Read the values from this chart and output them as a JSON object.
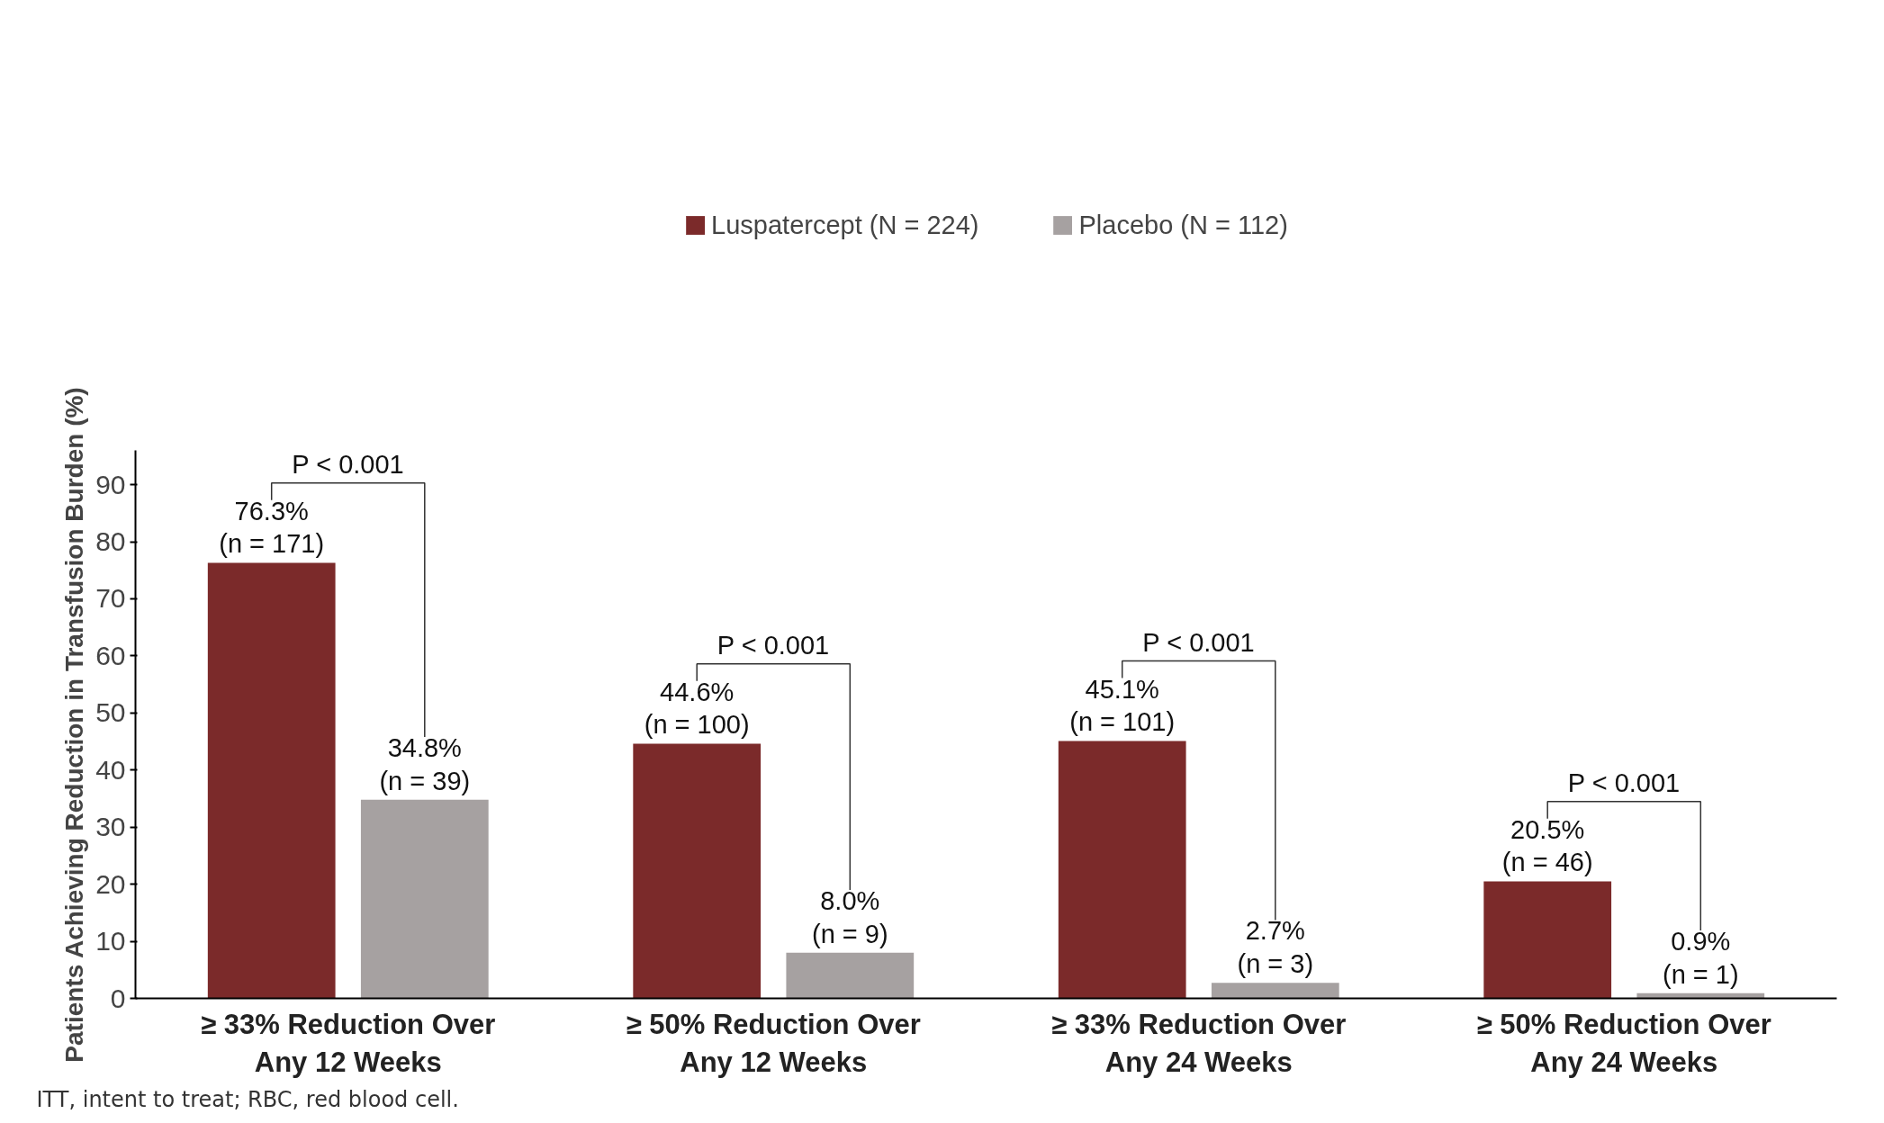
{
  "chart_data": {
    "type": "bar",
    "ylabel": "Patients Achieving Reduction in Transfusion Burden (%)",
    "categories": [
      "≥ 33% Reduction Over\nAny 12 Weeks",
      "≥ 50% Reduction Over\nAny 12 Weeks",
      "≥ 33% Reduction Over\nAny 24 Weeks",
      "≥ 50% Reduction Over\nAny 24 Weeks"
    ],
    "series": [
      {
        "name": "Luspatercept (N = 224)",
        "color": "#7b2a2a",
        "values": [
          76.3,
          44.6,
          45.1,
          20.5
        ],
        "value_labels": [
          "76.3%\n(n = 171)",
          "44.6%\n(n = 100)",
          "45.1%\n(n = 101)",
          "20.5%\n(n = 46)"
        ]
      },
      {
        "name": "Placebo (N = 112)",
        "color": "#a6a1a1",
        "values": [
          34.8,
          8.0,
          2.7,
          0.9
        ],
        "value_labels": [
          "34.8%\n(n = 39)",
          "8.0%\n(n = 9)",
          "2.7%\n(n = 3)",
          "0.9%\n(n = 1)"
        ]
      }
    ],
    "ylim": [
      0,
      96
    ],
    "yticks": [
      0,
      10,
      20,
      30,
      40,
      50,
      60,
      70,
      80,
      90
    ],
    "grid": false,
    "legend": "top",
    "annotations": [
      "P < 0.001",
      "P < 0.001",
      "P < 0.001",
      "P < 0.001",
      "ITT, intent to treat; RBC, red blood cell."
    ]
  }
}
